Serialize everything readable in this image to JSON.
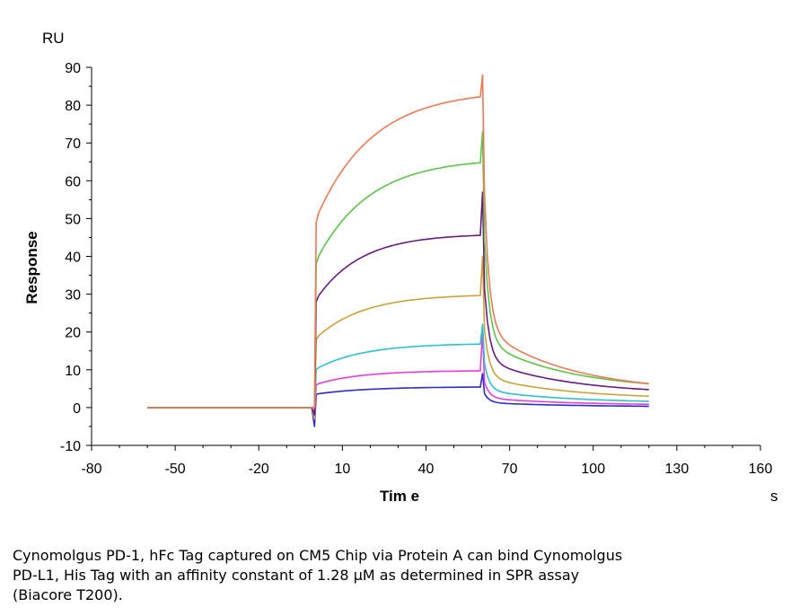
{
  "chart_data": {
    "type": "line",
    "ylabel": "Response",
    "yunit": "RU",
    "xlabel": "Tim e",
    "xunit": "s",
    "xlim": [
      -80,
      160
    ],
    "ylim": [
      -10,
      90
    ],
    "xticks": [
      -80,
      -50,
      -20,
      10,
      40,
      70,
      100,
      130,
      160
    ],
    "xtick_labels": [
      "-80",
      "-50",
      "-20",
      "10",
      "40",
      "70",
      "100",
      "130",
      "160"
    ],
    "yticks": [
      -10,
      0,
      10,
      20,
      30,
      40,
      50,
      60,
      70,
      80,
      90
    ],
    "ytick_labels": [
      "-10",
      "0",
      "10",
      "20",
      "30",
      "40",
      "50",
      "60",
      "70",
      "80",
      "90"
    ],
    "grid": false,
    "legend": "none",
    "association_start": 0,
    "dissociation_start": 60,
    "end_time": 120,
    "series": [
      {
        "color": "#ee7a55",
        "jump": 49,
        "plateau": 84,
        "tau_assoc": 20,
        "peak": 88,
        "end": 4.0,
        "spike": 0
      },
      {
        "color": "#5cc448",
        "jump": 38,
        "plateau": 66,
        "tau_assoc": 19,
        "peak": 73,
        "end": 4.5,
        "spike": 0
      },
      {
        "color": "#6a1b80",
        "jump": 28,
        "plateau": 46,
        "tau_assoc": 16,
        "peak": 57,
        "end": 3.5,
        "spike": -2
      },
      {
        "color": "#cda139",
        "jump": 18,
        "plateau": 30,
        "tau_assoc": 17,
        "peak": 40,
        "end": 2.2,
        "spike": -3
      },
      {
        "color": "#2bc0cf",
        "jump": 10,
        "plateau": 17,
        "tau_assoc": 17,
        "peak": 22,
        "end": 1.2,
        "spike": -2
      },
      {
        "color": "#e83ddc",
        "jump": 6,
        "plateau": 9.8,
        "tau_assoc": 16,
        "peak": 20,
        "end": 0.6,
        "spike": -3
      },
      {
        "color": "#2a2ccf",
        "jump": 3.5,
        "plateau": 5.5,
        "tau_assoc": 18,
        "peak": 9,
        "end": 0.2,
        "spike": -5
      }
    ]
  },
  "caption": {
    "line1": "Cynomolgus PD-1, hFc Tag captured on CM5 Chip via Protein A can bind Cynomolgus",
    "line2": "PD-L1, His Tag with an affinity constant of 1.28 μM as determined in SPR assay",
    "line3": "(Biacore T200)."
  }
}
